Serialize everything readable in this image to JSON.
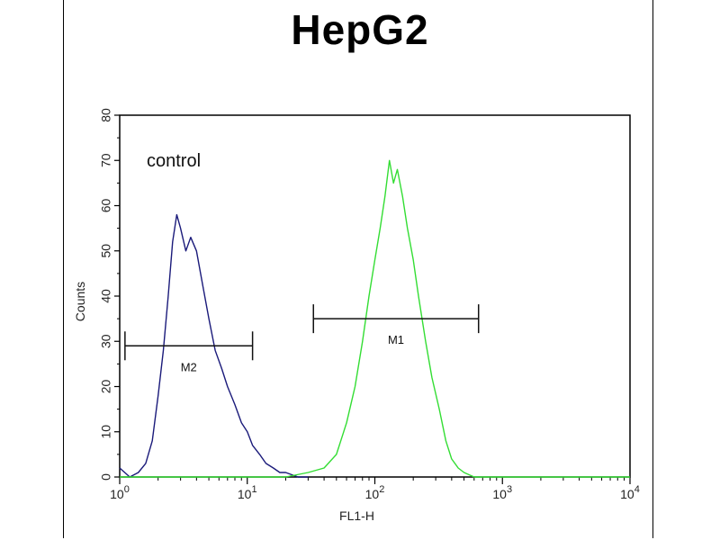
{
  "chart_data": {
    "type": "line",
    "title": "HepG2",
    "xlabel": "FL1-H",
    "ylabel": "Counts",
    "x_scale": "log",
    "xlim": [
      1,
      10000
    ],
    "ylim": [
      0,
      80
    ],
    "x_ticks": [
      {
        "value": 1,
        "base": "10",
        "exp": "0"
      },
      {
        "value": 10,
        "base": "10",
        "exp": "1"
      },
      {
        "value": 100,
        "base": "10",
        "exp": "2"
      },
      {
        "value": 1000,
        "base": "10",
        "exp": "3"
      },
      {
        "value": 10000,
        "base": "10",
        "exp": "4"
      }
    ],
    "y_ticks": [
      "0",
      "10",
      "20",
      "30",
      "40",
      "50",
      "60",
      "70",
      "80"
    ],
    "annotation": "control",
    "series": [
      {
        "color": "#1a1a7a",
        "x": [
          1.0,
          1.2,
          1.4,
          1.6,
          1.8,
          2.0,
          2.2,
          2.4,
          2.6,
          2.8,
          3.0,
          3.3,
          3.6,
          4.0,
          4.5,
          5.0,
          5.6,
          6.3,
          7.0,
          8.0,
          9.0,
          10.0,
          11.0,
          12.5,
          14.0,
          16.0,
          18.0,
          20.0,
          25.0,
          30.0
        ],
        "y": [
          2,
          0,
          1,
          3,
          8,
          18,
          28,
          40,
          52,
          58,
          55,
          50,
          53,
          50,
          42,
          35,
          28,
          24,
          20,
          16,
          12,
          10,
          7,
          5,
          3,
          2,
          1,
          1,
          0,
          0
        ]
      },
      {
        "color": "#33dd33",
        "x": [
          1.0,
          10.0,
          20.0,
          30.0,
          40.0,
          50.0,
          60.0,
          70.0,
          80.0,
          90.0,
          100.0,
          110.0,
          120.0,
          130.0,
          140.0,
          150.0,
          165.0,
          180.0,
          200.0,
          220.0,
          250.0,
          280.0,
          320.0,
          360.0,
          400.0,
          450.0,
          500.0,
          600.0,
          1000.0,
          10000.0
        ],
        "y": [
          0,
          0,
          0,
          1,
          2,
          5,
          12,
          20,
          30,
          40,
          48,
          55,
          62,
          70,
          65,
          68,
          62,
          55,
          48,
          40,
          30,
          22,
          15,
          8,
          4,
          2,
          1,
          0,
          0,
          0
        ]
      }
    ],
    "markers": [
      {
        "label": "M2",
        "x1": 1.1,
        "x2": 11.0,
        "y": 29
      },
      {
        "label": "M1",
        "x1": 33.0,
        "x2": 650.0,
        "y": 35
      }
    ]
  }
}
